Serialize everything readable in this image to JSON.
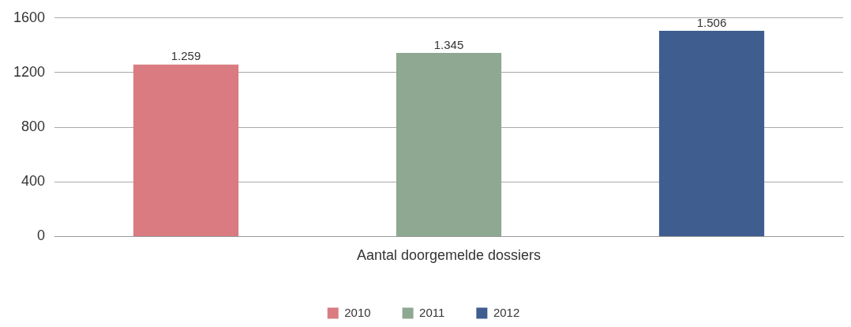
{
  "chart_data": {
    "type": "bar",
    "categories": [
      "Aantal doorgemelde dossiers"
    ],
    "series": [
      {
        "name": "2010",
        "color": "#d97b81",
        "values": [
          1259
        ],
        "value_labels": [
          "1.259"
        ]
      },
      {
        "name": "2011",
        "color": "#8fa891",
        "values": [
          1345
        ],
        "value_labels": [
          "1.345"
        ]
      },
      {
        "name": "2012",
        "color": "#3f5d8f",
        "values": [
          1506
        ],
        "value_labels": [
          "1.506"
        ]
      }
    ],
    "ylim": [
      0,
      1600
    ],
    "yticks": [
      0,
      400,
      800,
      1200,
      1600
    ],
    "grid": "y",
    "legend": "bottom"
  }
}
